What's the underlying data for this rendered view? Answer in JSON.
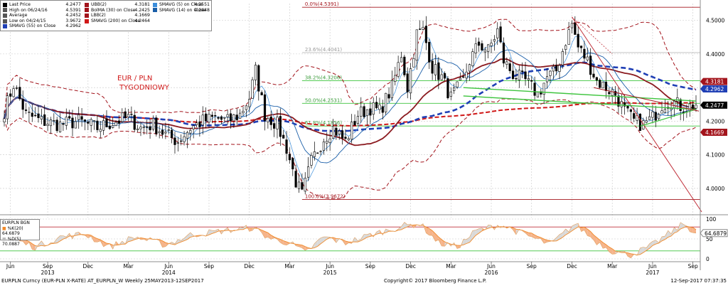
{
  "chart_data": {
    "type": "candlestick",
    "title": "EUR / PLN TYGODNIOWY",
    "instrument": "EURPLN Curncy (EUR-PLN X-RATE)",
    "period": "Weekly 25MAY2013-12SEP2017",
    "ylim": [
      3.93,
      4.55
    ],
    "yticks": [
      "4.0000",
      "4.1000",
      "4.2000",
      "4.3000",
      "4.4000",
      "4.5000"
    ],
    "ytick_values": [
      4.0,
      4.1,
      4.2,
      4.3,
      4.4,
      4.5
    ],
    "x_ticks": [
      {
        "label": "Jun",
        "year": "",
        "week": 2
      },
      {
        "label": "Sep",
        "year": "2013",
        "week": 14
      },
      {
        "label": "Dec",
        "year": "",
        "week": 27
      },
      {
        "label": "Mar",
        "year": "",
        "week": 40
      },
      {
        "label": "Jun",
        "year": "2014",
        "week": 53
      },
      {
        "label": "Sep",
        "year": "",
        "week": 66
      },
      {
        "label": "Dec",
        "year": "",
        "week": 79
      },
      {
        "label": "Mar",
        "year": "",
        "week": 92
      },
      {
        "label": "Jun",
        "year": "2015",
        "week": 105
      },
      {
        "label": "Sep",
        "year": "",
        "week": 118
      },
      {
        "label": "Dec",
        "year": "",
        "week": 131
      },
      {
        "label": "Mar",
        "year": "",
        "week": 144
      },
      {
        "label": "Jun",
        "year": "2016",
        "week": 157
      },
      {
        "label": "Sep",
        "year": "",
        "week": 170
      },
      {
        "label": "Dec",
        "year": "",
        "week": 183
      },
      {
        "label": "Mar",
        "year": "",
        "week": 196
      },
      {
        "label": "Jun",
        "year": "2017",
        "week": 209
      },
      {
        "label": "Sep",
        "year": "",
        "week": 222
      }
    ],
    "close_anchors": [
      [
        0,
        4.23
      ],
      [
        3,
        4.31
      ],
      [
        7,
        4.22
      ],
      [
        12,
        4.2
      ],
      [
        18,
        4.19
      ],
      [
        24,
        4.2
      ],
      [
        30,
        4.18
      ],
      [
        36,
        4.2
      ],
      [
        40,
        4.21
      ],
      [
        44,
        4.18
      ],
      [
        48,
        4.19
      ],
      [
        52,
        4.16
      ],
      [
        56,
        4.14
      ],
      [
        60,
        4.18
      ],
      [
        64,
        4.2
      ],
      [
        68,
        4.21
      ],
      [
        72,
        4.2
      ],
      [
        76,
        4.22
      ],
      [
        79,
        4.27
      ],
      [
        81,
        4.35
      ],
      [
        84,
        4.22
      ],
      [
        88,
        4.19
      ],
      [
        91,
        4.12
      ],
      [
        94,
        4.02
      ],
      [
        96,
        3.98
      ],
      [
        99,
        4.08
      ],
      [
        103,
        4.15
      ],
      [
        106,
        4.18
      ],
      [
        110,
        4.14
      ],
      [
        114,
        4.22
      ],
      [
        118,
        4.24
      ],
      [
        121,
        4.23
      ],
      [
        125,
        4.3
      ],
      [
        128,
        4.4
      ],
      [
        130,
        4.3
      ],
      [
        133,
        4.46
      ],
      [
        135,
        4.47
      ],
      [
        138,
        4.36
      ],
      [
        141,
        4.33
      ],
      [
        144,
        4.27
      ],
      [
        148,
        4.32
      ],
      [
        150,
        4.38
      ],
      [
        153,
        4.43
      ],
      [
        156,
        4.41
      ],
      [
        159,
        4.47
      ],
      [
        161,
        4.38
      ],
      [
        164,
        4.34
      ],
      [
        168,
        4.32
      ],
      [
        172,
        4.28
      ],
      [
        175,
        4.33
      ],
      [
        178,
        4.35
      ],
      [
        181,
        4.44
      ],
      [
        183,
        4.49
      ],
      [
        185,
        4.42
      ],
      [
        188,
        4.38
      ],
      [
        191,
        4.32
      ],
      [
        194,
        4.3
      ],
      [
        197,
        4.28
      ],
      [
        200,
        4.23
      ],
      [
        203,
        4.2
      ],
      [
        206,
        4.19
      ],
      [
        209,
        4.21
      ],
      [
        212,
        4.25
      ],
      [
        215,
        4.26
      ],
      [
        219,
        4.24
      ],
      [
        223,
        4.2477
      ]
    ],
    "levels": [
      {
        "label": "0.0%(4.5391)",
        "value": 4.5391
      },
      {
        "label": "23.6%(4.4041)",
        "value": 4.4041
      },
      {
        "label": "38.2%(4.3206)",
        "value": 4.3206
      },
      {
        "label": "50.0%(4.2531)",
        "value": 4.2531
      },
      {
        "label": "61.8%(4.1856)",
        "value": 4.1856
      },
      {
        "label": "100.0%(3.9672)",
        "value": 3.9672
      }
    ],
    "price_labels": [
      {
        "value": 4.3181,
        "text": "4.3181",
        "color": "#a3141c"
      },
      {
        "value": 4.2962,
        "text": "4.2962",
        "color": "#1f3fb5"
      },
      {
        "value": 4.2477,
        "text": "4.2477",
        "color": "#000000"
      },
      {
        "value": 4.1669,
        "text": "4.1669",
        "color": "#a3141c"
      }
    ],
    "oscillator": {
      "ylim": [
        0,
        100
      ],
      "yticks": [
        "0",
        "50",
        "100"
      ],
      "ytick_values": [
        0,
        50,
        100
      ],
      "last_value_label": "64.6879",
      "k_anchors": [
        [
          0,
          70
        ],
        [
          6,
          40
        ],
        [
          10,
          30
        ],
        [
          18,
          55
        ],
        [
          26,
          62
        ],
        [
          34,
          30
        ],
        [
          42,
          55
        ],
        [
          52,
          35
        ],
        [
          60,
          60
        ],
        [
          70,
          70
        ],
        [
          80,
          78
        ],
        [
          86,
          50
        ],
        [
          92,
          40
        ],
        [
          97,
          15
        ],
        [
          103,
          55
        ],
        [
          110,
          40
        ],
        [
          118,
          60
        ],
        [
          128,
          82
        ],
        [
          134,
          88
        ],
        [
          140,
          40
        ],
        [
          146,
          30
        ],
        [
          152,
          70
        ],
        [
          160,
          86
        ],
        [
          168,
          60
        ],
        [
          176,
          36
        ],
        [
          184,
          88
        ],
        [
          190,
          48
        ],
        [
          196,
          20
        ],
        [
          202,
          10
        ],
        [
          208,
          30
        ],
        [
          214,
          62
        ],
        [
          219,
          88
        ],
        [
          223,
          64.6879
        ]
      ]
    }
  },
  "legend": {
    "col1": [
      {
        "color": "#000000",
        "label": "Last Price",
        "value": "4.2477"
      },
      {
        "color": "#555555",
        "label": "High on 06/24/16",
        "value": "4.5391"
      },
      {
        "color": "#555555",
        "label": "Average",
        "value": "4.2452"
      },
      {
        "color": "#555555",
        "label": "Low on 04/24/15",
        "value": "3.9672"
      },
      {
        "color": "#1f3fb5",
        "label": "SMAVG (55) on Close",
        "value": "4.2962"
      }
    ],
    "col2": [
      {
        "color": "#a3141c",
        "label": "UBB(2)",
        "value": "4.3181"
      },
      {
        "color": "#a3141c",
        "label": "BolMA (30) on Close",
        "value": "4.2425"
      },
      {
        "color": "#a3141c",
        "label": "LBB(2)",
        "value": "4.1669"
      },
      {
        "color": "#d01818",
        "label": "SMAVG (200) on Close",
        "value": "4.2464"
      }
    ],
    "col3": [
      {
        "color": "#3a8ddb",
        "label": "SMAVG (5) on Close",
        "value": "4.2551"
      },
      {
        "color": "#1a5ea8",
        "label": "SMAVG (14) on Close",
        "value": "4.2448"
      }
    ]
  },
  "sub_legend": {
    "title": "EURPLN BGN",
    "line1": "%K(20) 64.6879",
    "line2": "%D(5) 70.0887"
  },
  "footer": {
    "left": "EURPLN Curncy (EUR-PLN X-RATE) AT_EURPLN_W Weekly 25MAY2013-12SEP2017",
    "center": "Copyright© 2017 Bloomberg Finance L.P.",
    "right": "12-Sep-2017 07:37:35"
  }
}
